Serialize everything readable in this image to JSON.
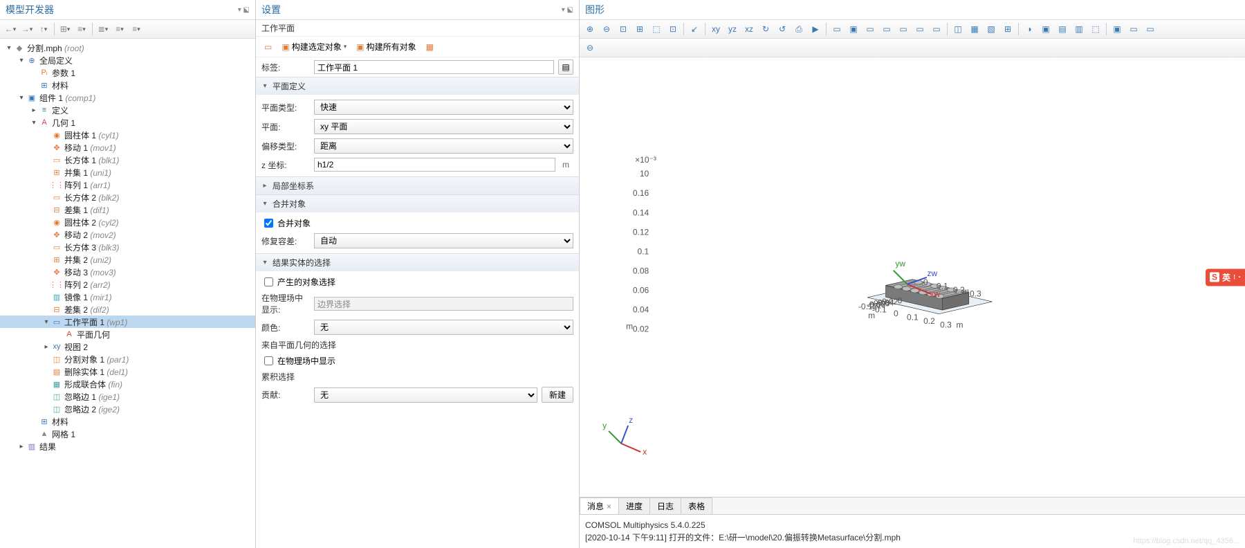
{
  "layout": {
    "left_w": 370,
    "mid_w": 468
  },
  "left": {
    "title": "模型开发器",
    "toolbar_icons": [
      "←",
      "→",
      "↑",
      "⊞",
      "≡",
      "≣",
      "≡",
      "≡"
    ],
    "tree": [
      {
        "d": 0,
        "tw": "▾",
        "ic": "◆",
        "col": "c-gray",
        "txt": "分割.mph",
        "paren": "(root)"
      },
      {
        "d": 1,
        "tw": "▾",
        "ic": "⊕",
        "col": "c-blue",
        "txt": "全局定义"
      },
      {
        "d": 2,
        "tw": "",
        "ic": "Pᵢ",
        "col": "c-orange",
        "txt": "参数 1"
      },
      {
        "d": 2,
        "tw": "",
        "ic": "⊞",
        "col": "c-blue",
        "txt": "材料"
      },
      {
        "d": 1,
        "tw": "▾",
        "ic": "▣",
        "col": "c-blue",
        "txt": "组件 1",
        "paren": "(comp1)"
      },
      {
        "d": 2,
        "tw": "▸",
        "ic": "≡",
        "col": "c-blue",
        "txt": "定义"
      },
      {
        "d": 2,
        "tw": "▾",
        "ic": "A",
        "col": "c-red",
        "txt": "几何 1"
      },
      {
        "d": 3,
        "tw": "",
        "ic": "◉",
        "col": "c-orange",
        "txt": "圆柱体 1",
        "paren": "(cyl1)"
      },
      {
        "d": 3,
        "tw": "",
        "ic": "✥",
        "col": "c-orange",
        "txt": "移动 1",
        "paren": "(mov1)"
      },
      {
        "d": 3,
        "tw": "",
        "ic": "▭",
        "col": "c-orange",
        "txt": "长方体 1",
        "paren": "(blk1)"
      },
      {
        "d": 3,
        "tw": "",
        "ic": "⊞",
        "col": "c-orange",
        "txt": "并集 1",
        "paren": "(uni1)"
      },
      {
        "d": 3,
        "tw": "",
        "ic": "⋮⋮",
        "col": "c-orange",
        "txt": "阵列 1",
        "paren": "(arr1)"
      },
      {
        "d": 3,
        "tw": "",
        "ic": "▭",
        "col": "c-orange",
        "txt": "长方体 2",
        "paren": "(blk2)"
      },
      {
        "d": 3,
        "tw": "",
        "ic": "⊟",
        "col": "c-orange",
        "txt": "差集 1",
        "paren": "(dif1)"
      },
      {
        "d": 3,
        "tw": "",
        "ic": "◉",
        "col": "c-orange",
        "txt": "圆柱体 2",
        "paren": "(cyl2)"
      },
      {
        "d": 3,
        "tw": "",
        "ic": "✥",
        "col": "c-orange",
        "txt": "移动 2",
        "paren": "(mov2)"
      },
      {
        "d": 3,
        "tw": "",
        "ic": "▭",
        "col": "c-orange",
        "txt": "长方体 3",
        "paren": "(blk3)"
      },
      {
        "d": 3,
        "tw": "",
        "ic": "⊞",
        "col": "c-orange",
        "txt": "并集 2",
        "paren": "(uni2)"
      },
      {
        "d": 3,
        "tw": "",
        "ic": "✥",
        "col": "c-orange",
        "txt": "移动 3",
        "paren": "(mov3)"
      },
      {
        "d": 3,
        "tw": "",
        "ic": "⋮⋮",
        "col": "c-orange",
        "txt": "阵列 2",
        "paren": "(arr2)"
      },
      {
        "d": 3,
        "tw": "",
        "ic": "▥",
        "col": "c-teal",
        "txt": "镜像 1",
        "paren": "(mir1)"
      },
      {
        "d": 3,
        "tw": "",
        "ic": "⊟",
        "col": "c-orange",
        "txt": "差集 2",
        "paren": "(dif2)"
      },
      {
        "d": 3,
        "tw": "▾",
        "ic": "▭",
        "col": "c-blue",
        "txt": "工作平面 1",
        "paren": "(wp1)",
        "sel": true
      },
      {
        "d": 4,
        "tw": "",
        "ic": "A",
        "col": "c-red",
        "txt": "平面几何"
      },
      {
        "d": 3,
        "tw": "▸",
        "ic": "xy",
        "col": "c-blue",
        "txt": "视图 2"
      },
      {
        "d": 3,
        "tw": "",
        "ic": "◫",
        "col": "c-orange",
        "txt": "分割对象 1",
        "paren": "(par1)"
      },
      {
        "d": 3,
        "tw": "",
        "ic": "▤",
        "col": "c-orange",
        "txt": "删除实体 1",
        "paren": "(del1)"
      },
      {
        "d": 3,
        "tw": "",
        "ic": "▦",
        "col": "c-teal",
        "txt": "形成联合体",
        "paren": "(fin)"
      },
      {
        "d": 3,
        "tw": "",
        "ic": "◫",
        "col": "c-teal",
        "txt": "忽略边 1",
        "paren": "(ige1)"
      },
      {
        "d": 3,
        "tw": "",
        "ic": "◫",
        "col": "c-teal",
        "txt": "忽略边 2",
        "paren": "(ige2)"
      },
      {
        "d": 2,
        "tw": "",
        "ic": "⊞",
        "col": "c-blue",
        "txt": "材料"
      },
      {
        "d": 2,
        "tw": "",
        "ic": "▲",
        "col": "c-gray",
        "txt": "网格 1"
      },
      {
        "d": 1,
        "tw": "▸",
        "ic": "▥",
        "col": "c-purple",
        "txt": "结果"
      }
    ]
  },
  "mid": {
    "title": "设置",
    "subtitle": "工作平面",
    "actions": [
      {
        "ic": "▭",
        "l": ""
      },
      {
        "ic": "▣",
        "l": "构建选定对象",
        "drop": true
      },
      {
        "ic": "▣",
        "l": "构建所有对象"
      },
      {
        "ic": "▦",
        "l": ""
      }
    ],
    "label_field": {
      "label": "标签:",
      "value": "工作平面 1"
    },
    "sections": [
      {
        "title": "平面定义",
        "open": true,
        "rows": [
          {
            "type": "select",
            "label": "平面类型:",
            "value": "快速"
          },
          {
            "type": "select",
            "label": "平面:",
            "value": "xy 平面"
          },
          {
            "type": "select",
            "label": "偏移类型:",
            "value": "距离"
          },
          {
            "type": "text",
            "label": "z 坐标:",
            "value": "h1/2",
            "unit": "m"
          }
        ]
      },
      {
        "title": "局部坐标系",
        "open": false
      },
      {
        "title": "合并对象",
        "open": true,
        "rows": [
          {
            "type": "check",
            "label": "合并对象",
            "checked": true
          },
          {
            "type": "select",
            "label": "修复容差:",
            "value": "自动"
          }
        ]
      },
      {
        "title": "结果实体的选择",
        "open": true,
        "rows": [
          {
            "type": "check",
            "label": "产生的对象选择",
            "checked": false
          },
          {
            "type": "text",
            "label": "在物理场中显示:",
            "value": "边界选择",
            "readonly": true
          },
          {
            "type": "select",
            "label": "颜色:",
            "value": "无"
          },
          {
            "type": "note",
            "label": "来自平面几何的选择"
          },
          {
            "type": "check",
            "label": "在物理场中显示",
            "checked": false
          },
          {
            "type": "note",
            "label": "累积选择"
          },
          {
            "type": "select-btn",
            "label": "贡献:",
            "value": "无",
            "btn": "新建"
          }
        ]
      }
    ]
  },
  "right": {
    "title": "图形",
    "axis_triad": {
      "x": "x",
      "y": "y",
      "z": "z"
    },
    "work_triad": {
      "x": "xw",
      "y": "yw",
      "z": "zw"
    },
    "ticks_top": [
      "0",
      "0.1",
      "0.2",
      "0.3"
    ],
    "ticks_top_unit": "m",
    "ticks_left": [
      "10",
      "0.16",
      "0.14",
      "0.12",
      "0.1",
      "0.08",
      "0.06",
      "0.04",
      "0.02"
    ],
    "ticks_left_prefix": "×10⁻³",
    "ticks_left_unit": "m",
    "ticks_bottom_l": [
      "0",
      "-0.02",
      "-0.04",
      "-0.06",
      "-0.08",
      "-0.1",
      "-0.12"
    ],
    "ticks_bottom_l_unit": "m",
    "ticks_bottom_r": [
      "-0.1",
      "0",
      "0.1",
      "0.2",
      "0.3"
    ],
    "ticks_bottom_r_unit": "m",
    "badge": "英",
    "tabs": [
      "消息",
      "进度",
      "日志",
      "表格"
    ],
    "active_tab": 0,
    "msg1": "COMSOL Multiphysics 5.4.0.225",
    "msg2": "[2020-10-14 下午9:11] 打开的文件：E:\\研一\\model\\20.偏振转换Metasurface\\分割.mph",
    "watermark": "https://blog.csdn.net/qq_4356..."
  },
  "colors": {
    "sel": "#bcd7f0",
    "hdr": "#2d6ca2",
    "axis_x": "#cc3333",
    "axis_y": "#339933",
    "axis_z": "#3355cc",
    "slab": "#9a9a9a",
    "plane": "#b8c8d8"
  }
}
